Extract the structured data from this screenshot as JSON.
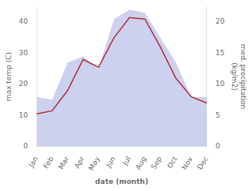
{
  "chart_data": {
    "type": "line",
    "xlabel": "date (month)",
    "ylabel": "max temp (C)",
    "y2label": "med. precipitation\n(kg/m2)",
    "categories": [
      "Jan",
      "Feb",
      "Mar",
      "Apr",
      "May",
      "Jun",
      "Jul",
      "Aug",
      "Sep",
      "Oct",
      "Nov",
      "Dec"
    ],
    "series": [
      {
        "type": "area",
        "axis": "y2",
        "color": "#b0b8e8",
        "values": [
          8.0,
          7.5,
          13.5,
          14.5,
          12.5,
          20.5,
          22.0,
          21.5,
          17.5,
          13.5,
          8.0,
          8.0
        ]
      },
      {
        "type": "line",
        "color": "#b03030",
        "values": [
          10.5,
          11.5,
          18.0,
          28.0,
          25.5,
          35.0,
          41.5,
          41.0,
          32.0,
          22.0,
          16.0,
          14.0
        ]
      }
    ],
    "ylim": [
      0,
      45
    ],
    "yticks": [
      0,
      10,
      20,
      30,
      40
    ],
    "y2lim": [
      0,
      22.5
    ],
    "y2ticks": [
      0,
      5,
      10,
      15,
      20
    ],
    "grid": false
  }
}
